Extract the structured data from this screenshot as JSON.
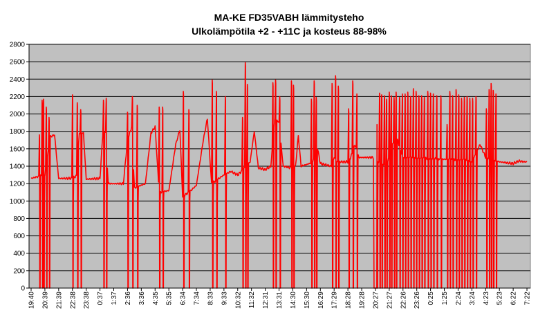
{
  "chart_data": {
    "type": "line",
    "title": "MA-KE FD35VABH lämmitysteho",
    "subtitle": "Ulkolämpötila  +2 - +11C ja kosteus 88-98%",
    "xlabel": "",
    "ylabel": "",
    "ylim": [
      0,
      2800
    ],
    "y_ticks": [
      0,
      200,
      400,
      600,
      800,
      1000,
      1200,
      1400,
      1600,
      1800,
      2000,
      2200,
      2400,
      2600,
      2800
    ],
    "x_tick_labels": [
      "19:40",
      "20:39",
      "21:39",
      "22:38",
      "23:38",
      "0:37",
      "1:37",
      "2:36",
      "3:36",
      "4:35",
      "5:35",
      "6:34",
      "7:34",
      "8:33",
      "9:33",
      "10:32",
      "11:32",
      "12:31",
      "13:31",
      "14:30",
      "15:30",
      "16:29",
      "17:29",
      "18:28",
      "19:28",
      "20:27",
      "21:27",
      "22:26",
      "23:26",
      "0:25",
      "1:25",
      "2:24",
      "3:24",
      "4:23",
      "5:23",
      "6:22",
      "7:22"
    ],
    "grid": true,
    "plot_background": "#c0c0c0",
    "line_color": "#ff0000",
    "series": [
      {
        "baseline": [
          [
            0,
            1260
          ],
          [
            0.5,
            1280
          ],
          [
            1,
            1300
          ],
          [
            1.4,
            1740
          ],
          [
            1.7,
            1760
          ],
          [
            2,
            1260
          ],
          [
            3,
            1260
          ],
          [
            3.3,
            1290
          ],
          [
            3.5,
            1780
          ],
          [
            3.8,
            1780
          ],
          [
            4,
            1250
          ],
          [
            5,
            1260
          ],
          [
            5.2,
            1760
          ],
          [
            5.4,
            1800
          ],
          [
            5.6,
            1200
          ],
          [
            6.3,
            1200
          ],
          [
            6.7,
            1200
          ],
          [
            7,
            1700
          ],
          [
            7.3,
            1850
          ],
          [
            7.5,
            1150
          ],
          [
            8.3,
            1200
          ],
          [
            8.7,
            1780
          ],
          [
            9,
            1850
          ],
          [
            9.3,
            1100
          ],
          [
            10,
            1120
          ],
          [
            10.5,
            1650
          ],
          [
            10.8,
            1820
          ],
          [
            11,
            1050
          ],
          [
            11.6,
            1120
          ],
          [
            12,
            1180
          ],
          [
            12.5,
            1700
          ],
          [
            12.8,
            1950
          ],
          [
            13.1,
            1200
          ],
          [
            14,
            1300
          ],
          [
            14.5,
            1340
          ],
          [
            15,
            1300
          ],
          [
            15.5,
            1380
          ],
          [
            15.9,
            1450
          ],
          [
            16.2,
            1800
          ],
          [
            16.5,
            1380
          ],
          [
            17,
            1360
          ],
          [
            17.4,
            1400
          ],
          [
            17.7,
            1950
          ],
          [
            18,
            1900
          ],
          [
            18.3,
            1400
          ],
          [
            18.9,
            1380
          ],
          [
            19.2,
            1400
          ],
          [
            19.4,
            1750
          ],
          [
            19.6,
            1400
          ],
          [
            20.4,
            1440
          ],
          [
            20.8,
            1600
          ],
          [
            21,
            1430
          ],
          [
            21.8,
            1400
          ],
          [
            22,
            1500
          ],
          [
            22.2,
            1450
          ],
          [
            23,
            1450
          ],
          [
            23.2,
            1500
          ],
          [
            23.5,
            1650
          ],
          [
            23.8,
            1500
          ],
          [
            24.8,
            1500
          ],
          [
            25.2,
            1450
          ],
          [
            25.8,
            1400
          ],
          [
            26.2,
            1650
          ],
          [
            26.6,
            1700
          ],
          [
            27,
            1500
          ],
          [
            31.5,
            1470
          ],
          [
            32,
            1450
          ],
          [
            32.6,
            1650
          ],
          [
            33,
            1500
          ],
          [
            34,
            1450
          ],
          [
            35,
            1430
          ],
          [
            35.4,
            1460
          ],
          [
            35.8,
            1450
          ],
          [
            36,
            1450
          ]
        ],
        "bursts": [
          [
            0.65,
            1760
          ],
          [
            0.85,
            2160
          ],
          [
            0.95,
            2170
          ],
          [
            1.15,
            2080
          ],
          [
            1.35,
            1960
          ],
          [
            3.05,
            2220
          ],
          [
            3.4,
            2130
          ],
          [
            3.65,
            2050
          ],
          [
            5.3,
            2160
          ],
          [
            5.5,
            2180
          ],
          [
            7.05,
            2020
          ],
          [
            7.4,
            2200
          ],
          [
            7.75,
            2100
          ],
          [
            9.35,
            2080
          ],
          [
            9.6,
            2080
          ],
          [
            11.1,
            2260
          ],
          [
            11.5,
            2050
          ],
          [
            13.2,
            2390
          ],
          [
            13.5,
            2260
          ],
          [
            14.15,
            2200
          ],
          [
            15.4,
            1960
          ],
          [
            15.6,
            2590
          ],
          [
            15.75,
            2340
          ],
          [
            17.6,
            2360
          ],
          [
            17.8,
            2390
          ],
          [
            18.1,
            2200
          ],
          [
            18.95,
            2380
          ],
          [
            19.1,
            2330
          ],
          [
            20.4,
            2170
          ],
          [
            20.6,
            2380
          ],
          [
            20.75,
            2190
          ],
          [
            21.9,
            2350
          ],
          [
            22.15,
            2440
          ],
          [
            22.35,
            2320
          ],
          [
            23.1,
            2060
          ],
          [
            23.4,
            2380
          ],
          [
            23.7,
            2230
          ],
          [
            25.15,
            1920
          ],
          [
            25.35,
            2240
          ],
          [
            25.5,
            2220
          ],
          [
            25.7,
            2210
          ],
          [
            25.85,
            2170
          ],
          [
            26.05,
            2250
          ],
          [
            26.2,
            2210
          ],
          [
            26.4,
            2190
          ],
          [
            26.55,
            2250
          ],
          [
            26.8,
            2190
          ],
          [
            27.0,
            2230
          ],
          [
            27.2,
            2230
          ],
          [
            27.4,
            2250
          ],
          [
            27.6,
            2200
          ],
          [
            27.8,
            2290
          ],
          [
            28.0,
            2260
          ],
          [
            28.2,
            2210
          ],
          [
            28.4,
            2210
          ],
          [
            28.6,
            2190
          ],
          [
            28.85,
            2260
          ],
          [
            29.05,
            2240
          ],
          [
            29.25,
            2230
          ],
          [
            29.5,
            2210
          ],
          [
            29.8,
            2210
          ],
          [
            30.25,
            1880
          ],
          [
            30.45,
            2260
          ],
          [
            30.65,
            2210
          ],
          [
            30.9,
            2280
          ],
          [
            31.1,
            2220
          ],
          [
            31.3,
            2180
          ],
          [
            31.5,
            2190
          ],
          [
            31.7,
            2200
          ],
          [
            31.9,
            2180
          ],
          [
            32.1,
            2180
          ],
          [
            32.35,
            2200
          ],
          [
            33.1,
            2060
          ],
          [
            33.3,
            2280
          ],
          [
            33.45,
            2350
          ],
          [
            33.6,
            2270
          ],
          [
            33.8,
            2230
          ]
        ]
      }
    ]
  }
}
